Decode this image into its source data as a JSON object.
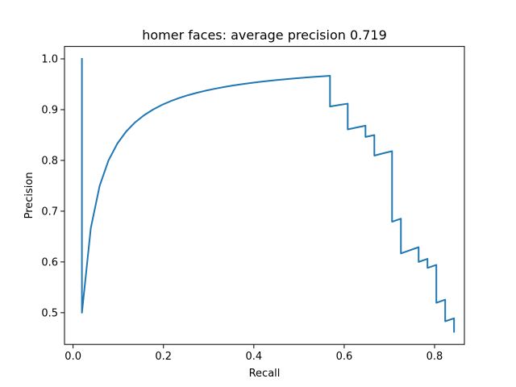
{
  "chart_data": {
    "type": "line",
    "title": "homer faces: average precision 0.719",
    "xlabel": "Recall",
    "ylabel": "Precision",
    "xlim": [
      -0.019,
      0.866
    ],
    "ylim": [
      0.4375,
      1.0245
    ],
    "xticks": [
      0.0,
      0.2,
      0.4,
      0.6,
      0.8
    ],
    "xtick_labels": [
      "0.0",
      "0.2",
      "0.4",
      "0.6",
      "0.8"
    ],
    "yticks": [
      0.5,
      0.6,
      0.7,
      0.8,
      0.9,
      1.0
    ],
    "ytick_labels": [
      "0.5",
      "0.6",
      "0.7",
      "0.8",
      "0.9",
      "1.0"
    ],
    "grid": false,
    "line_color": "#1f77b4",
    "series": [
      {
        "x": [
          0.0196,
          0.0196,
          0.0196,
          0.0392,
          0.0588,
          0.0784,
          0.098,
          0.1176,
          0.1373,
          0.1569,
          0.1765,
          0.1961,
          0.2157,
          0.2353,
          0.2549,
          0.2745,
          0.2941,
          0.3137,
          0.3333,
          0.3529,
          0.3725,
          0.3922,
          0.4118,
          0.4314,
          0.451,
          0.4706,
          0.4902,
          0.5098,
          0.5294,
          0.549,
          0.5686,
          0.5686,
          0.5882,
          0.6078,
          0.6078,
          0.6275,
          0.6471,
          0.6471,
          0.6667,
          0.6667,
          0.6863,
          0.7059,
          0.7059,
          0.7255,
          0.7255,
          0.7451,
          0.7647,
          0.7647,
          0.7843,
          0.7843,
          0.8039,
          0.8039,
          0.8235,
          0.8235,
          0.8431,
          0.8431
        ],
        "y": [
          1.0,
          0.5,
          0.5,
          0.6667,
          0.75,
          0.8,
          0.8333,
          0.8571,
          0.875,
          0.8889,
          0.9,
          0.9091,
          0.9167,
          0.9231,
          0.9286,
          0.9333,
          0.9375,
          0.9412,
          0.9444,
          0.9474,
          0.95,
          0.9524,
          0.9545,
          0.9565,
          0.9583,
          0.96,
          0.9615,
          0.963,
          0.9643,
          0.9655,
          0.9667,
          0.9062,
          0.9091,
          0.9118,
          0.8611,
          0.8649,
          0.8684,
          0.8462,
          0.85,
          0.8095,
          0.814,
          0.8182,
          0.6792,
          0.6852,
          0.6167,
          0.623,
          0.629,
          0.6,
          0.6061,
          0.5882,
          0.5942,
          0.5195,
          0.5256,
          0.4831,
          0.4889,
          0.4624
        ]
      }
    ]
  }
}
